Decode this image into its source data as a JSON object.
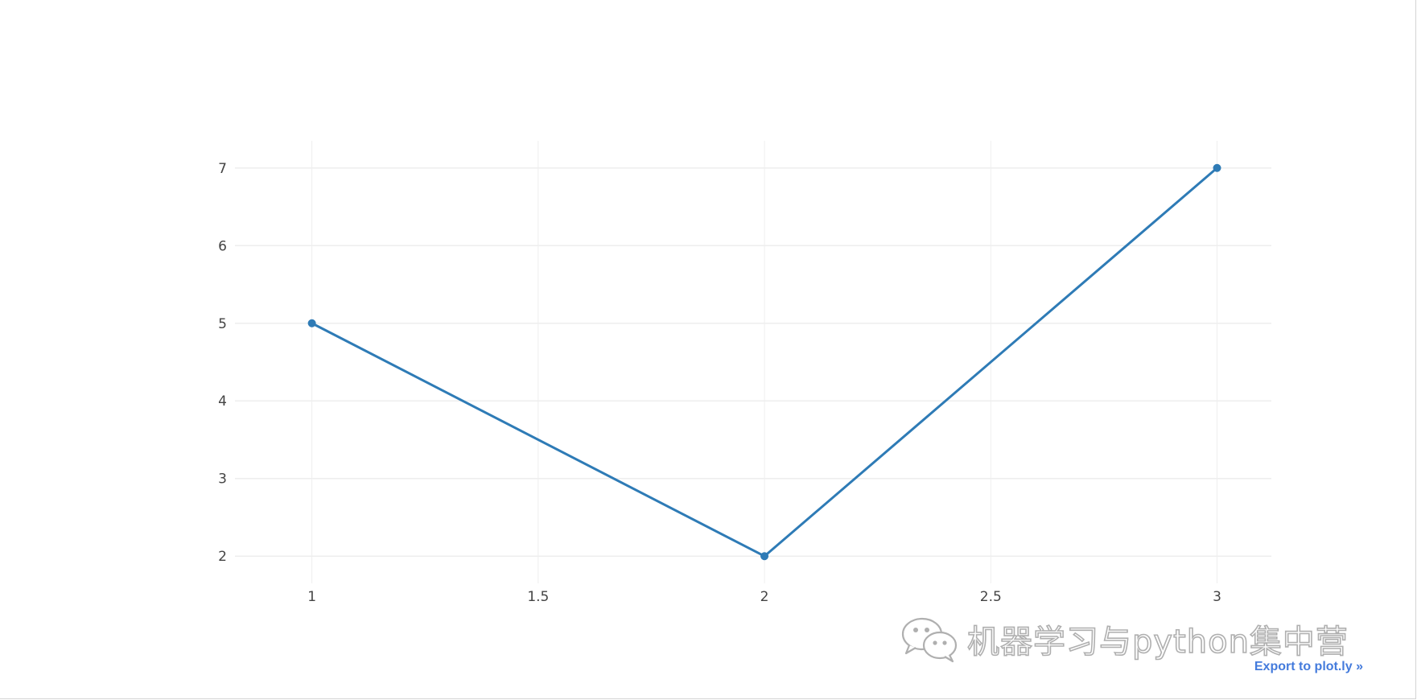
{
  "chart_data": {
    "type": "line",
    "title": "",
    "xlabel": "",
    "ylabel": "",
    "x": [
      1,
      2,
      3
    ],
    "series": [
      {
        "values": [
          5,
          2,
          7
        ],
        "color": "#2e7bb6",
        "mode": "lines+markers"
      }
    ],
    "xlim": [
      0.83,
      3.12
    ],
    "ylim": [
      1.65,
      7.35
    ],
    "xticks": [
      1,
      1.5,
      2,
      2.5,
      3
    ],
    "xtick_labels": [
      "1",
      "1.5",
      "2",
      "2.5",
      "3"
    ],
    "yticks": [
      2,
      3,
      4,
      5,
      6,
      7
    ],
    "ytick_labels": [
      "2",
      "3",
      "4",
      "5",
      "6",
      "7"
    ],
    "grid": true,
    "grid_color": "#eeeeee"
  },
  "watermark": {
    "text": "机器学习与python集中营",
    "icon": "wechat-icon"
  },
  "export_link": {
    "label": "Export to plot.ly »",
    "color": "#447bdc"
  }
}
